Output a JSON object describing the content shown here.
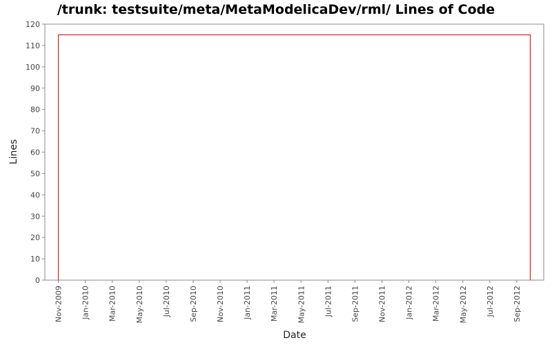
{
  "chart_data": {
    "type": "line",
    "title": "/trunk: testsuite/meta/MetaModelicaDev/rml/ Lines of Code",
    "x_label": "Date",
    "y_label": "Lines",
    "series": [
      {
        "name": "Lines",
        "color": "#cc0000",
        "x": [
          "Nov-2009",
          "Nov-2009",
          "Oct-2012",
          "Oct-2012"
        ],
        "values": [
          0,
          115,
          115,
          0
        ]
      }
    ],
    "xlim": [
      "Oct-2009",
      "Nov-2012"
    ],
    "xticks": [
      "Nov-2009",
      "Jan-2010",
      "Mar-2010",
      "May-2010",
      "Jul-2010",
      "Sep-2010",
      "Nov-2010",
      "Jan-2011",
      "Mar-2011",
      "May-2011",
      "Jul-2011",
      "Sep-2011",
      "Nov-2011",
      "Jan-2012",
      "Mar-2012",
      "May-2012",
      "Jul-2012",
      "Sep-2012"
    ],
    "ylim": [
      0,
      120
    ],
    "yticks": [
      0,
      10,
      20,
      30,
      40,
      50,
      60,
      70,
      80,
      90,
      100,
      110,
      120
    ],
    "grid": false
  }
}
